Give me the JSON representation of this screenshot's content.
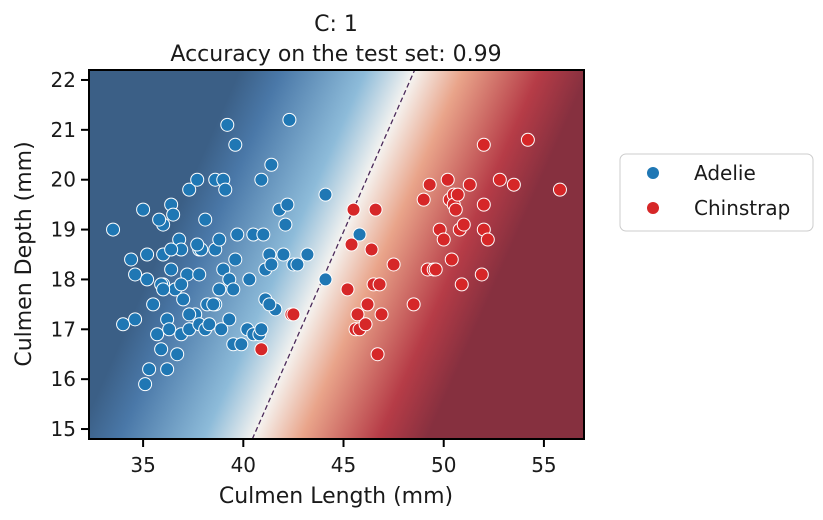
{
  "chart_data": {
    "type": "scatter",
    "title": "C: 1",
    "subtitle": "Accuracy on the test set: 0.99",
    "xlabel": "Culmen Length (mm)",
    "ylabel": "Culmen Depth (mm)",
    "xlim": [
      32.3,
      57.0
    ],
    "ylim": [
      14.8,
      22.2
    ],
    "xticks": [
      35,
      40,
      45,
      50,
      55
    ],
    "yticks": [
      15,
      16,
      17,
      18,
      19,
      20,
      21,
      22
    ],
    "grid": false,
    "legend_position": "right",
    "colormap": "RdBu_r",
    "decision_boundary": {
      "style": "dashed",
      "color": "#4b2a5a",
      "x_at_ylim_min": 40.45,
      "x_at_ylim_max": 48.55
    },
    "series": [
      {
        "name": "Adelie",
        "color": "#1f77b4",
        "x": [
          33.5,
          34.0,
          34.4,
          34.6,
          34.6,
          35.0,
          35.1,
          35.2,
          35.3,
          35.5,
          35.7,
          35.9,
          36.0,
          36.0,
          36.0,
          36.2,
          36.3,
          36.4,
          36.4,
          36.5,
          36.6,
          36.7,
          36.8,
          36.9,
          36.9,
          37.0,
          37.2,
          37.3,
          37.3,
          37.6,
          37.7,
          37.8,
          37.8,
          37.8,
          37.9,
          38.1,
          38.1,
          38.2,
          38.3,
          38.6,
          38.6,
          38.6,
          38.8,
          38.8,
          39.0,
          39.2,
          39.3,
          39.3,
          39.5,
          39.5,
          39.6,
          39.6,
          39.7,
          39.9,
          40.2,
          40.3,
          40.5,
          40.5,
          40.8,
          40.9,
          41.0,
          41.1,
          41.1,
          41.3,
          41.4,
          41.4,
          41.6,
          41.8,
          42.0,
          42.1,
          42.2,
          42.3,
          42.5,
          42.7,
          43.2,
          44.1,
          44.1,
          45.8,
          36.2,
          37.3,
          38.9,
          39.0,
          40.9,
          41.3,
          35.2,
          35.8,
          35.9,
          36.0,
          36.4,
          36.9,
          37.7,
          38.5,
          39.1
        ],
        "y": [
          19.0,
          17.1,
          18.4,
          18.1,
          17.2,
          19.4,
          15.9,
          18.0,
          16.2,
          17.5,
          16.9,
          16.6,
          18.5,
          19.1,
          17.9,
          17.2,
          17.0,
          19.5,
          18.2,
          19.3,
          17.8,
          16.5,
          18.8,
          16.9,
          18.6,
          17.6,
          18.1,
          17.0,
          19.8,
          17.3,
          20.0,
          18.1,
          17.1,
          18.6,
          18.6,
          17.0,
          19.2,
          17.5,
          17.1,
          18.6,
          20.0,
          17.5,
          17.8,
          18.8,
          18.2,
          21.1,
          18.0,
          17.2,
          16.7,
          17.8,
          18.4,
          20.7,
          18.9,
          16.7,
          17.0,
          18.0,
          18.9,
          16.9,
          16.9,
          17.0,
          18.9,
          18.2,
          17.6,
          18.5,
          18.3,
          20.3,
          17.4,
          19.4,
          18.5,
          19.1,
          19.5,
          21.2,
          18.3,
          18.3,
          18.5,
          19.7,
          18.0,
          18.9,
          16.2,
          17.3,
          17.0,
          20.0,
          20.0,
          17.5,
          18.5,
          19.2,
          17.9,
          17.8,
          18.6,
          17.9,
          18.7,
          17.5,
          19.8
        ],
        "test_points": [
          [
            45.8,
            18.9
          ],
          [
            44.1,
            18.0
          ]
        ]
      },
      {
        "name": "Chinstrap",
        "color": "#d62728",
        "x": [
          40.9,
          42.4,
          42.5,
          45.2,
          45.4,
          45.5,
          45.6,
          45.7,
          45.8,
          46.1,
          46.2,
          46.4,
          46.5,
          46.6,
          46.7,
          46.8,
          46.9,
          47.5,
          48.5,
          49.0,
          49.2,
          49.3,
          49.5,
          49.6,
          49.8,
          50.0,
          50.2,
          50.3,
          50.4,
          50.5,
          50.5,
          50.6,
          50.7,
          50.8,
          50.9,
          51.0,
          51.3,
          51.9,
          52.0,
          52.0,
          52.0,
          52.2,
          52.8,
          53.5,
          54.2,
          55.8
        ],
        "y": [
          16.6,
          17.3,
          17.3,
          17.8,
          18.7,
          19.4,
          17.0,
          17.3,
          17.0,
          17.1,
          17.5,
          18.6,
          17.9,
          19.4,
          16.5,
          17.9,
          17.3,
          18.3,
          17.5,
          19.6,
          18.2,
          19.9,
          18.2,
          18.2,
          19.0,
          18.8,
          20.0,
          19.6,
          18.4,
          19.7,
          19.5,
          19.4,
          19.7,
          19.0,
          17.9,
          19.1,
          19.9,
          18.1,
          19.5,
          20.7,
          19.0,
          18.8,
          20.0,
          19.9,
          20.8,
          19.8
        ],
        "test_points": [
          [
            45.4,
            18.7
          ],
          [
            45.5,
            19.4
          ],
          [
            42.5,
            17.3
          ],
          [
            40.9,
            16.6
          ]
        ]
      }
    ]
  }
}
